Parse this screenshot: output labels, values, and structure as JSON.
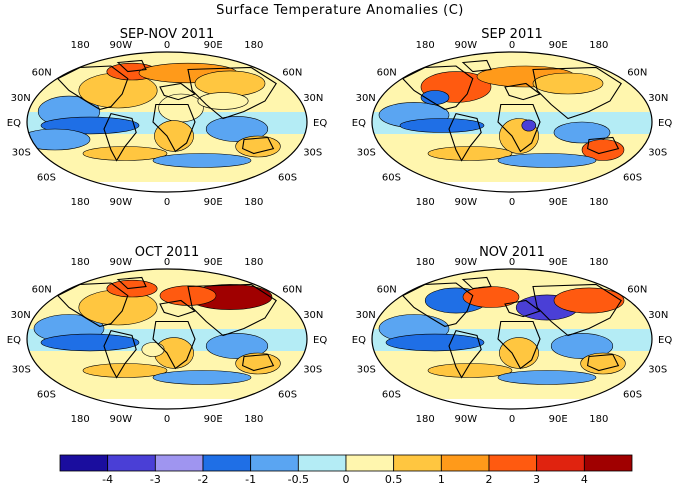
{
  "figure": {
    "title": "Surface Temperature Anomalies (C)"
  },
  "panels": [
    {
      "title": "SEP-NOV 2011",
      "lon_labels_top": [
        "180",
        "90W",
        "0",
        "90E",
        "180"
      ],
      "lon_labels_bottom": [
        "180",
        "90W",
        "0",
        "90E",
        "180"
      ],
      "lat_labels_left": [
        "60N",
        "30N",
        "EQ",
        "30S",
        "60S"
      ],
      "lat_labels_right": [
        "60N",
        "30N",
        "EQ",
        "30S",
        "60S"
      ]
    },
    {
      "title": "SEP 2011",
      "lon_labels_top": [
        "180",
        "90W",
        "0",
        "90E",
        "180"
      ],
      "lon_labels_bottom": [
        "180",
        "90W",
        "0",
        "90E",
        "180"
      ],
      "lat_labels_left": [
        "60N",
        "30N",
        "EQ",
        "30S",
        "60S"
      ],
      "lat_labels_right": [
        "60N",
        "30N",
        "EQ",
        "30S",
        "60S"
      ]
    },
    {
      "title": "OCT 2011",
      "lon_labels_top": [
        "180",
        "90W",
        "0",
        "90E",
        "180"
      ],
      "lon_labels_bottom": [
        "180",
        "90W",
        "0",
        "90E",
        "180"
      ],
      "lat_labels_left": [
        "60N",
        "30N",
        "EQ",
        "30S",
        "60S"
      ],
      "lat_labels_right": [
        "60N",
        "30N",
        "EQ",
        "30S",
        "60S"
      ]
    },
    {
      "title": "NOV 2011",
      "lon_labels_top": [
        "180",
        "90W",
        "0",
        "90E",
        "180"
      ],
      "lon_labels_bottom": [
        "180",
        "90W",
        "0",
        "90E",
        "180"
      ],
      "lat_labels_left": [
        "60N",
        "30N",
        "EQ",
        "30S",
        "60S"
      ],
      "lat_labels_right": [
        "60N",
        "30N",
        "EQ",
        "30S",
        "60S"
      ]
    }
  ],
  "colorbar": {
    "labels": [
      "-4",
      "-3",
      "-2",
      "-1",
      "-0.5",
      "0",
      "0.5",
      "1",
      "2",
      "3",
      "4"
    ],
    "colors": [
      "#1a0d9e",
      "#4a3fd6",
      "#9f95f0",
      "#1f6fe6",
      "#5aa5f2",
      "#b4ecf5",
      "#fff6ae",
      "#ffc640",
      "#ff9a1a",
      "#ff5a10",
      "#e0230f",
      "#a00000"
    ]
  },
  "map_colors": {
    "ocean_neutral": "#b4ecf5",
    "cool_light": "#5aa5f2",
    "cool_mid": "#1f6fe6",
    "cool_strong": "#4a3fd6",
    "warm_light": "#fff6ae",
    "warm_mid": "#ffc640",
    "warm_strong": "#ff9a1a",
    "hot": "#ff5a10",
    "very_hot": "#a00000",
    "no_data": "#ffffff"
  }
}
